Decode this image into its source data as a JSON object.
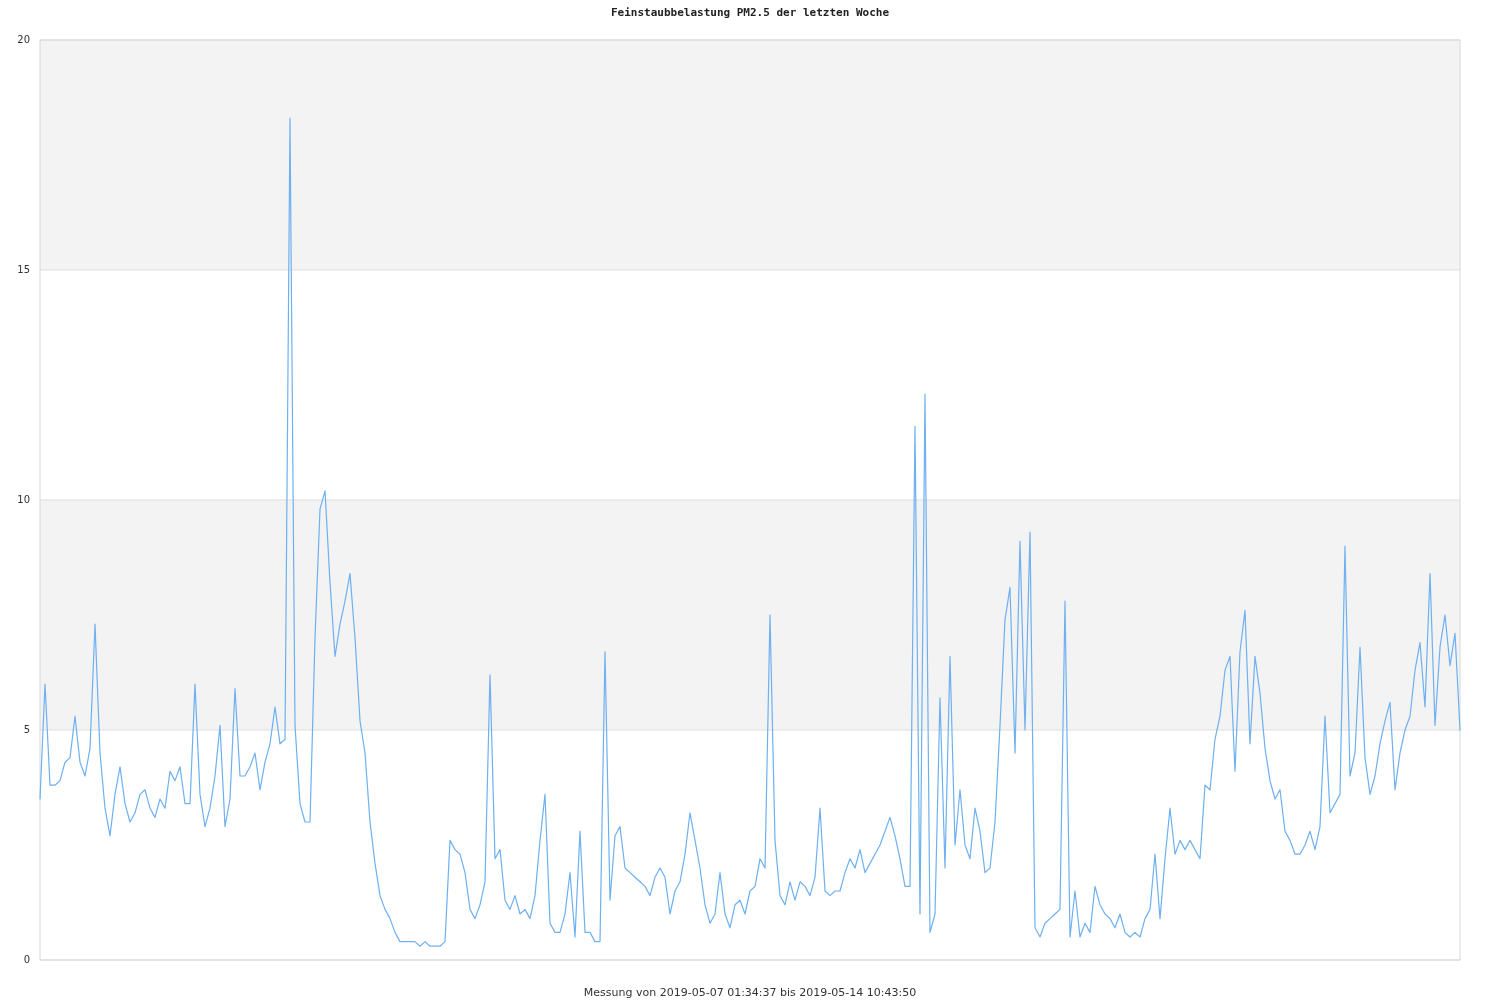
{
  "chart_data": {
    "type": "line",
    "title": "Feinstaubbelastung PM2.5 der letzten Woche",
    "xlabel": "Messung von 2019-05-07 01:34:37 bis 2019-05-14 10:43:50",
    "categories": [
      null,
      null,
      null,
      null,
      null,
      null,
      null,
      null,
      null,
      null,
      null,
      null,
      null,
      null,
      null,
      null,
      null,
      null,
      null,
      null,
      null,
      null,
      null,
      null,
      null,
      null,
      null,
      null,
      null,
      null,
      null,
      null,
      null,
      null,
      null,
      null,
      null,
      null,
      null,
      null,
      null,
      null,
      null,
      null,
      null,
      null,
      null,
      null,
      null,
      null,
      null,
      null,
      null,
      null,
      null,
      null,
      null,
      null,
      null,
      null,
      null,
      null,
      null,
      null,
      null,
      null,
      null,
      null,
      null,
      null,
      null,
      null,
      null,
      null,
      null,
      null,
      null,
      null,
      null,
      null,
      null,
      null,
      null,
      null,
      null,
      null,
      null,
      null,
      null,
      null,
      null,
      null,
      null,
      null,
      null,
      null,
      null,
      null,
      null,
      null,
      null,
      null,
      null,
      null,
      null,
      null,
      null,
      null,
      null,
      null,
      null,
      null,
      null,
      null,
      null,
      null,
      null,
      null,
      null,
      null,
      null,
      null,
      null,
      null,
      null,
      null,
      null,
      null,
      null,
      null,
      null,
      null,
      null,
      null,
      null,
      null,
      null,
      null,
      null,
      null,
      null,
      null,
      null,
      null,
      null,
      null,
      null,
      null,
      null,
      null,
      null,
      null,
      null,
      null,
      null,
      null,
      null,
      null,
      null,
      null,
      null,
      null,
      null,
      null,
      null,
      null,
      null,
      null,
      null,
      null,
      null,
      null,
      null,
      null,
      null,
      null,
      null,
      null,
      null,
      null,
      null,
      null,
      null,
      null,
      null,
      null,
      null,
      null,
      null,
      null,
      null,
      null,
      null,
      null,
      null,
      null,
      null,
      null,
      null,
      null,
      null,
      null,
      null,
      null,
      null,
      null,
      null,
      null,
      null,
      null,
      null,
      null,
      null,
      null,
      null,
      null,
      null,
      null,
      null,
      null,
      null,
      null,
      null,
      null,
      null,
      null,
      null,
      null,
      null,
      null,
      null,
      null,
      null,
      null,
      null,
      null,
      null,
      null,
      null,
      null,
      null,
      null,
      null,
      null,
      null,
      null,
      null,
      null,
      null,
      null,
      null,
      null,
      null,
      null,
      null,
      null,
      null,
      null,
      null,
      null,
      null,
      null,
      null,
      null,
      null,
      null,
      null,
      null,
      null,
      null,
      null,
      null,
      null,
      null,
      null,
      null,
      null,
      null,
      null,
      null,
      null,
      null,
      null,
      null,
      null
    ],
    "series": [
      {
        "color": "#6eb0f0",
        "values": [
          3.5,
          6.0,
          3.8,
          3.8,
          3.9,
          4.3,
          4.4,
          5.3,
          4.3,
          4.0,
          4.6,
          7.3,
          4.5,
          3.3,
          2.7,
          3.6,
          4.2,
          3.4,
          3.0,
          3.2,
          3.6,
          3.7,
          3.3,
          3.1,
          3.5,
          3.3,
          4.1,
          3.9,
          4.2,
          3.4,
          3.4,
          6.0,
          3.6,
          2.9,
          3.3,
          4.0,
          5.1,
          2.9,
          3.5,
          5.9,
          4.0,
          4.0,
          4.2,
          4.5,
          3.7,
          4.3,
          4.7,
          5.5,
          4.7,
          4.8,
          18.3,
          5.1,
          3.4,
          3.0,
          3.0,
          7.0,
          9.8,
          10.2,
          8.2,
          6.6,
          7.3,
          7.8,
          8.4,
          7.0,
          5.2,
          4.5,
          3.0,
          2.1,
          1.4,
          1.1,
          0.9,
          0.6,
          0.4,
          0.4,
          0.4,
          0.4,
          0.3,
          0.4,
          0.3,
          0.3,
          0.3,
          0.4,
          2.6,
          2.4,
          2.3,
          1.9,
          1.1,
          0.9,
          1.2,
          1.7,
          6.2,
          2.2,
          2.4,
          1.3,
          1.1,
          1.4,
          1.0,
          1.1,
          0.9,
          1.4,
          2.6,
          3.6,
          0.8,
          0.6,
          0.6,
          1.0,
          1.9,
          0.5,
          2.8,
          0.6,
          0.6,
          0.4,
          0.4,
          6.7,
          1.3,
          2.7,
          2.9,
          2.0,
          1.9,
          1.8,
          1.7,
          1.6,
          1.4,
          1.8,
          2.0,
          1.8,
          1.0,
          1.5,
          1.7,
          2.3,
          3.2,
          2.6,
          2.0,
          1.2,
          0.8,
          1.0,
          1.9,
          1.0,
          0.7,
          1.2,
          1.3,
          1.0,
          1.5,
          1.6,
          2.2,
          2.0,
          7.5,
          2.6,
          1.4,
          1.2,
          1.7,
          1.3,
          1.7,
          1.6,
          1.4,
          1.8,
          3.3,
          1.5,
          1.4,
          1.5,
          1.5,
          1.9,
          2.2,
          2.0,
          2.4,
          1.9,
          2.1,
          2.3,
          2.5,
          2.8,
          3.1,
          2.7,
          2.2,
          1.6,
          1.6,
          11.6,
          1.0,
          12.3,
          0.6,
          1.0,
          5.7,
          2.0,
          6.6,
          2.5,
          3.7,
          2.5,
          2.2,
          3.3,
          2.8,
          1.9,
          2.0,
          3.0,
          5.1,
          7.4,
          8.1,
          4.5,
          9.1,
          5.0,
          9.3,
          0.7,
          0.5,
          0.8,
          0.9,
          1.0,
          1.1,
          7.8,
          0.5,
          1.5,
          0.5,
          0.8,
          0.6,
          1.6,
          1.2,
          1.0,
          0.9,
          0.7,
          1.0,
          0.6,
          0.5,
          0.6,
          0.5,
          0.9,
          1.1,
          2.3,
          0.9,
          2.2,
          3.3,
          2.3,
          2.6,
          2.4,
          2.6,
          2.4,
          2.2,
          3.8,
          3.7,
          4.8,
          5.3,
          6.3,
          6.6,
          4.1,
          6.7,
          7.6,
          4.7,
          6.6,
          5.8,
          4.6,
          3.9,
          3.5,
          3.7,
          2.8,
          2.6,
          2.3,
          2.3,
          2.5,
          2.8,
          2.4,
          2.9,
          5.3,
          3.2,
          3.4,
          3.6,
          9.0,
          4.0,
          4.5,
          6.8,
          4.4,
          3.6,
          4.0,
          4.7,
          5.2,
          5.6,
          3.7,
          4.5,
          5.0,
          5.3,
          6.3,
          6.9,
          5.5,
          8.4,
          5.1,
          6.8,
          7.5,
          6.4,
          7.1,
          5.0
        ]
      }
    ],
    "ylim": [
      0,
      20
    ],
    "yticks": [
      0,
      5,
      10,
      15,
      20
    ],
    "grid": "y",
    "line_style": "solid",
    "bands": [
      {
        "axis": "y",
        "from": 5,
        "to": 10,
        "color": "#f3f3f3"
      },
      {
        "axis": "y",
        "from": 15,
        "to": 20,
        "color": "#f3f3f3"
      }
    ]
  }
}
